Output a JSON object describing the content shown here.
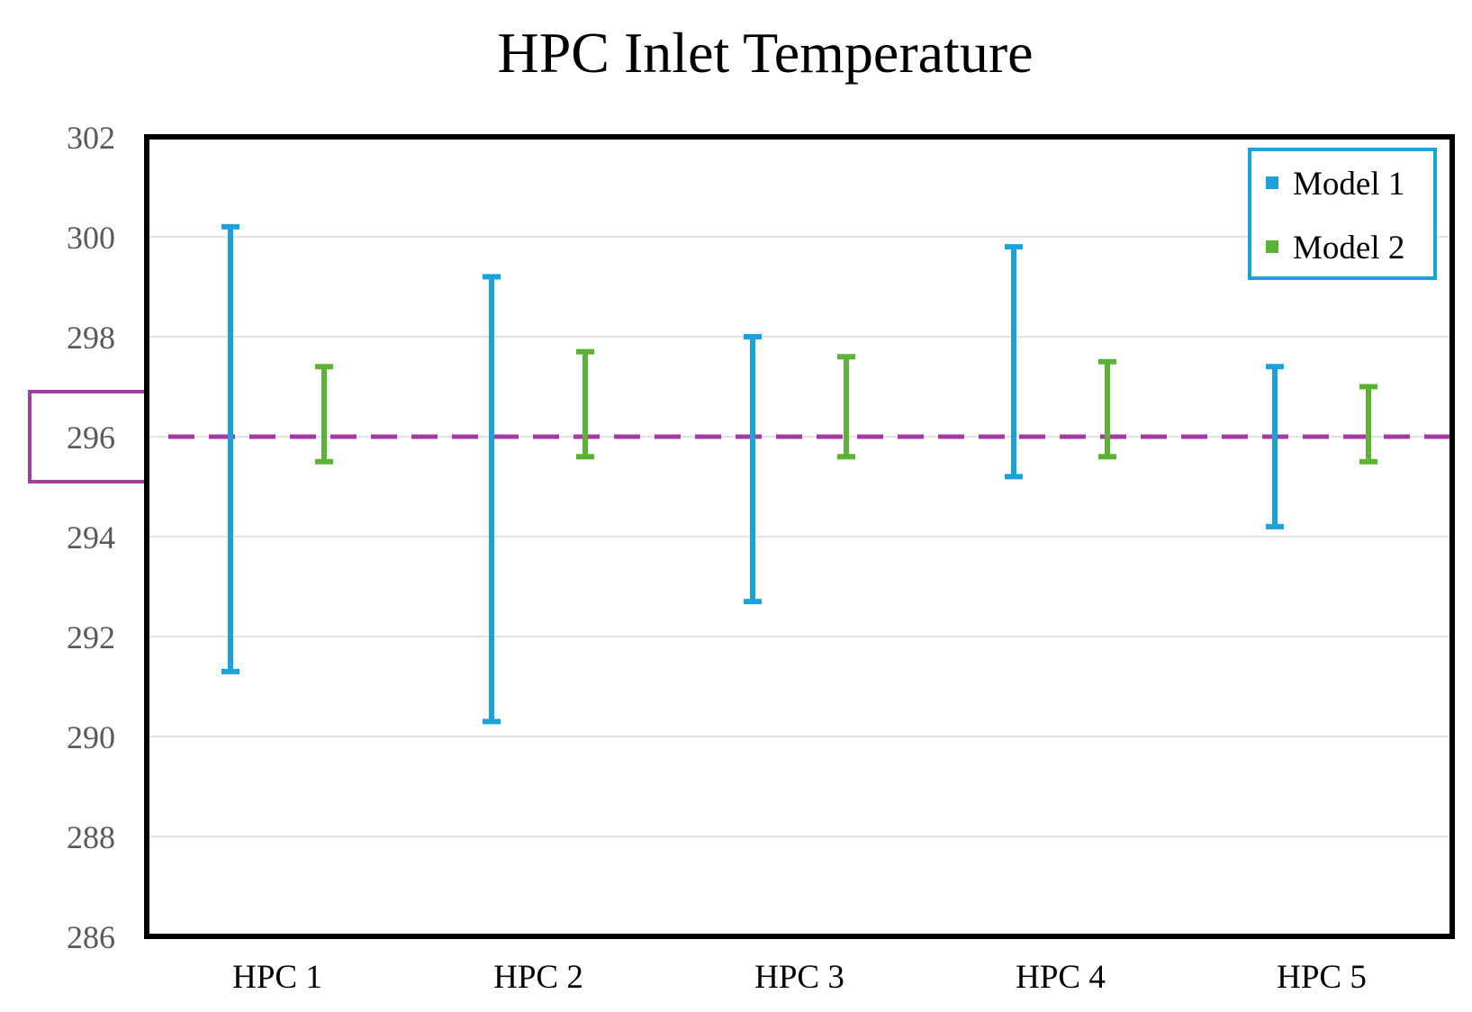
{
  "chart_data": {
    "type": "errorbar",
    "title": "HPC Inlet Temperature",
    "xlabel": "",
    "ylabel": "",
    "categories": [
      "HPC 1",
      "HPC 2",
      "HPC 3",
      "HPC 4",
      "HPC 5"
    ],
    "ylim": [
      286,
      302
    ],
    "yticks": [
      "286",
      "288",
      "290",
      "292",
      "294",
      "296",
      "298",
      "300",
      "302"
    ],
    "grid": "horizontal",
    "legend_position": "top-right",
    "reference_line": {
      "value": 296,
      "style": "dashed",
      "color": "#A23BA2",
      "highlighted_tick": "296"
    },
    "series": [
      {
        "name": "Model 1",
        "color": "#1AA3DB",
        "ranges": [
          {
            "low": 291.3,
            "high": 300.2
          },
          {
            "low": 290.3,
            "high": 299.2
          },
          {
            "low": 292.7,
            "high": 298.0
          },
          {
            "low": 295.2,
            "high": 299.8
          },
          {
            "low": 294.2,
            "high": 297.4
          }
        ]
      },
      {
        "name": "Model 2",
        "color": "#5BB335",
        "ranges": [
          {
            "low": 295.5,
            "high": 297.4
          },
          {
            "low": 295.6,
            "high": 297.7
          },
          {
            "low": 295.6,
            "high": 297.6
          },
          {
            "low": 295.6,
            "high": 297.5
          },
          {
            "low": 295.5,
            "high": 297.0
          }
        ]
      }
    ]
  }
}
